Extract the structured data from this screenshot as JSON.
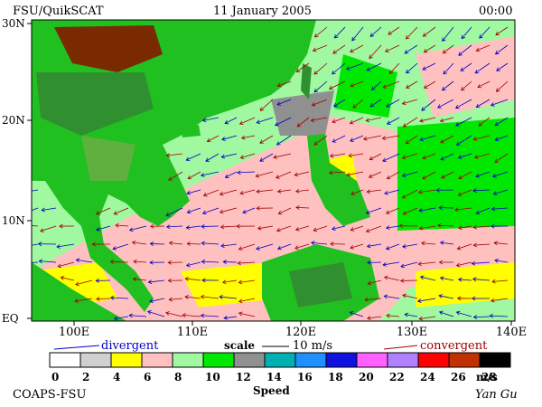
{
  "header": {
    "left": "FSU/QuikSCAT",
    "date": "11 January 2005",
    "time": "00:00"
  },
  "map": {
    "lat_labels": [
      "30N",
      "20N",
      "10N",
      "EQ"
    ],
    "lon_labels": [
      "100E",
      "110E",
      "120E",
      "130E",
      "140E"
    ]
  },
  "legend": {
    "divergent": "divergent",
    "scale": "scale",
    "scale_value": "10 m/s",
    "convergent": "convergent"
  },
  "colorbar": {
    "labels": [
      0,
      2,
      4,
      6,
      8,
      10,
      12,
      14,
      16,
      18,
      20,
      22,
      24,
      26,
      28
    ],
    "unit": "m/s",
    "title": "Speed",
    "colors": [
      "#ffffff",
      "#d0d0d0",
      "#ffff00",
      "#ffc0c0",
      "#a0f8a0",
      "#00e800",
      "#909090",
      "#00b0b0",
      "#2090ff",
      "#1010e0",
      "#ff60ff",
      "#b080ff",
      "#ff0000",
      "#c03000",
      "#000000"
    ]
  },
  "footer": {
    "left": "COAPS-FSU",
    "right": "Yan Gu"
  }
}
